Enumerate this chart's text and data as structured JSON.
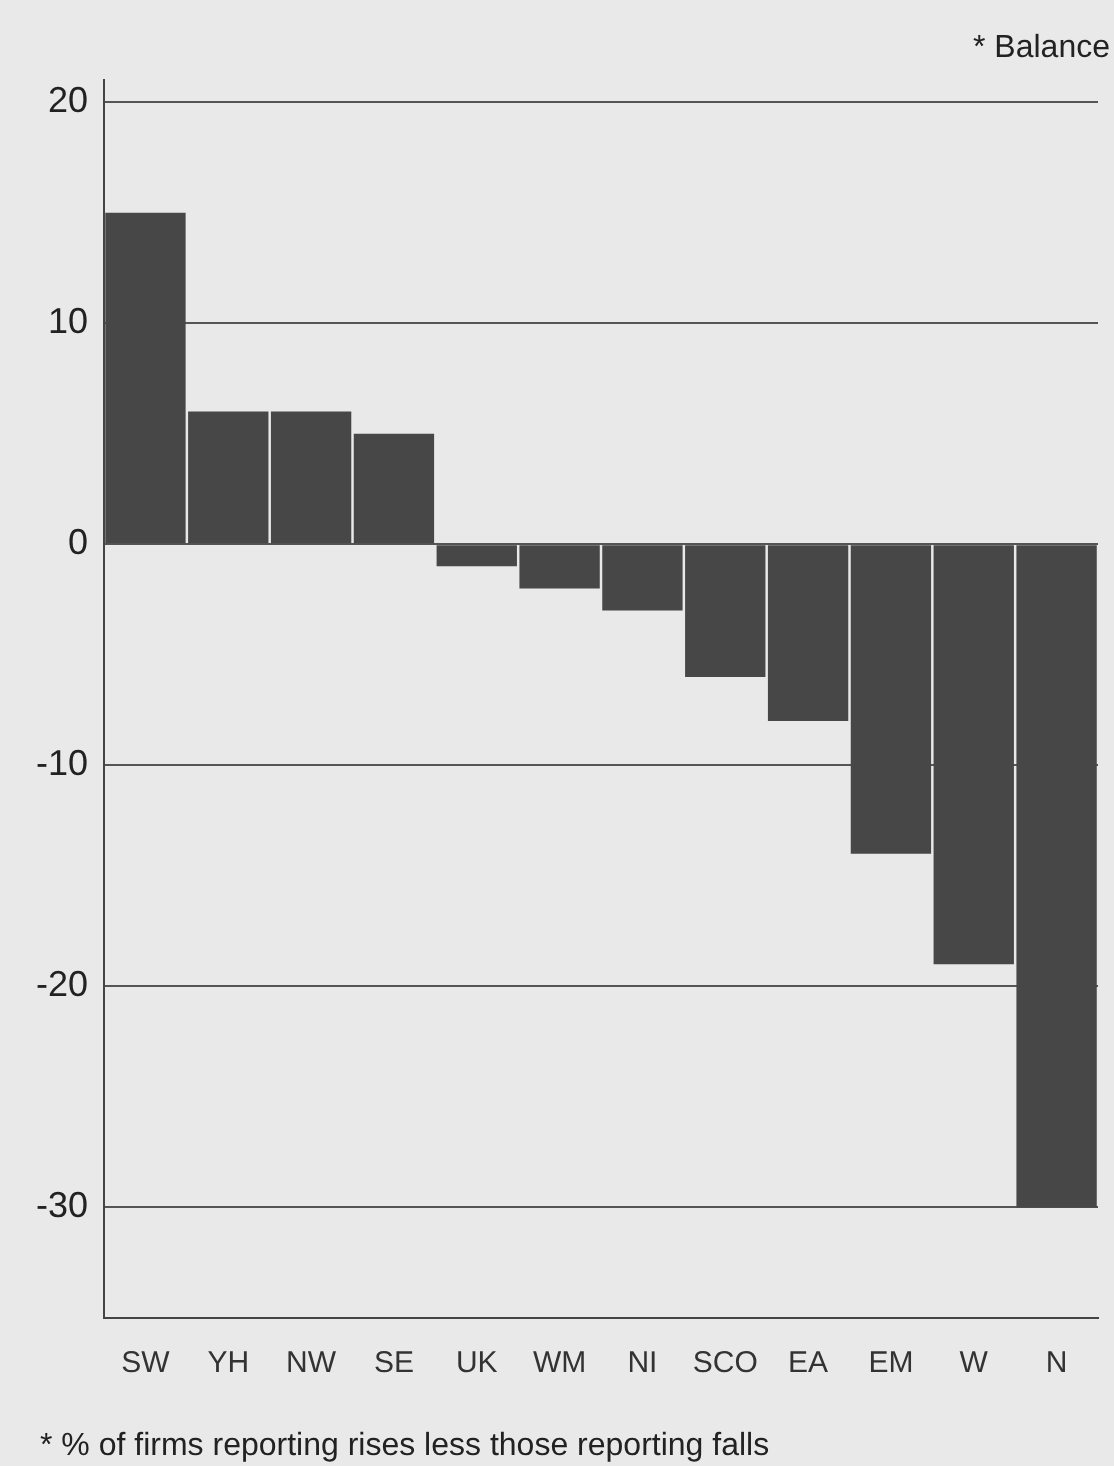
{
  "chart_data": {
    "type": "bar",
    "ylabel": "* Balance",
    "categories": [
      "SW",
      "YH",
      "NW",
      "SE",
      "UK",
      "WM",
      "NI",
      "SCO",
      "EA",
      "EM",
      "W",
      "N"
    ],
    "values": [
      15,
      6,
      6,
      5,
      -1,
      -2,
      -3,
      -6,
      -8,
      -14,
      -19,
      -30
    ],
    "color": "#474747",
    "ylim": [
      -35,
      21
    ],
    "yticks": [
      -30,
      -20,
      -10,
      0,
      10,
      20
    ],
    "grid": "y",
    "annotations": [
      "* % of firms reporting rises less those reporting falls"
    ]
  }
}
